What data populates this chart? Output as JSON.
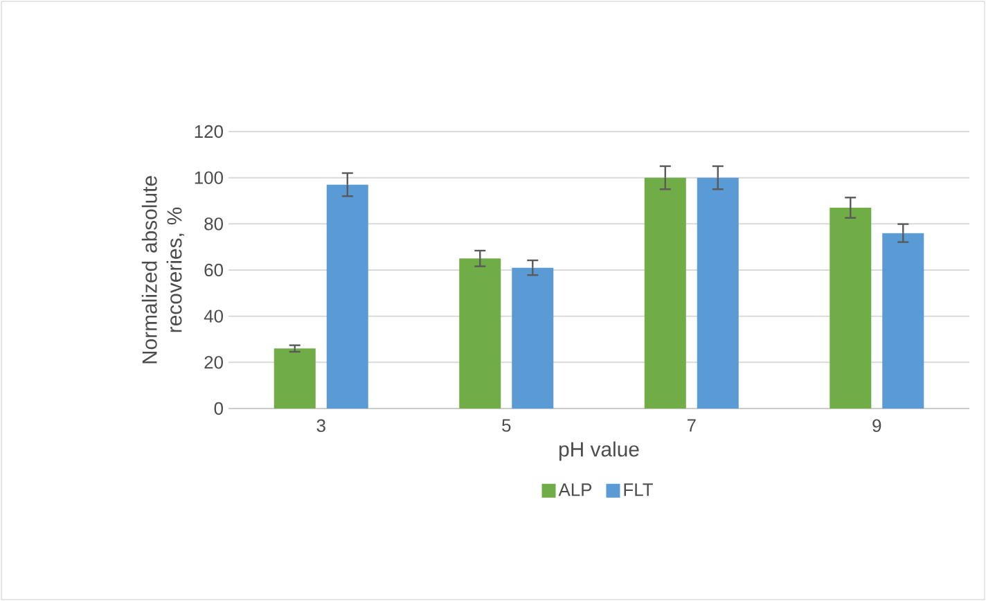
{
  "chart_data": {
    "type": "bar",
    "xlabel": "pH value",
    "ylabel": "Normalized absolute recoveries, %",
    "categories": [
      "3",
      "5",
      "7",
      "9"
    ],
    "series": [
      {
        "name": "ALP",
        "color": "#70ad47",
        "values": [
          26,
          65,
          100,
          87
        ],
        "errors": [
          1.4,
          3.4,
          5,
          4.4
        ]
      },
      {
        "name": "FLT",
        "color": "#5b9bd5",
        "values": [
          97,
          61,
          100,
          76
        ],
        "errors": [
          5,
          3.2,
          5,
          3.9
        ]
      }
    ],
    "ylim": [
      0,
      120
    ],
    "yticks": [
      0,
      20,
      40,
      60,
      80,
      100,
      120
    ],
    "grid": "y",
    "legend": "bottom"
  }
}
